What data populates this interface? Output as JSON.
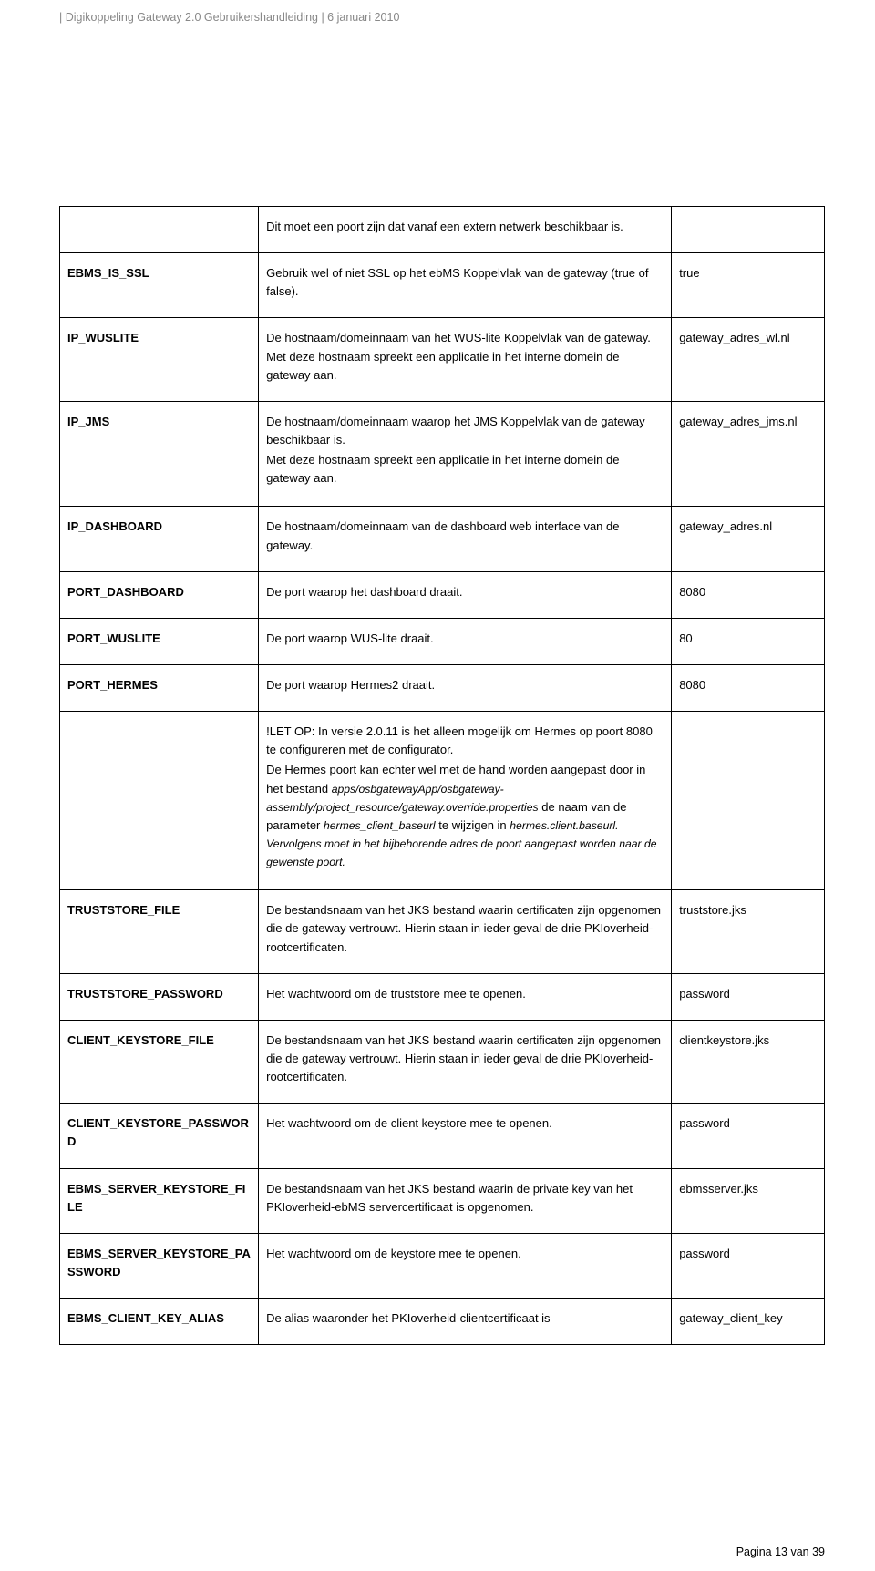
{
  "header": "| Digikoppeling Gateway 2.0 Gebruikershandleiding | 6 januari 2010",
  "footer": "Pagina 13 van 39",
  "rows": {
    "r0": {
      "key": "",
      "desc": "Dit moet een poort zijn dat vanaf een extern netwerk beschikbaar is.",
      "val": ""
    },
    "r1": {
      "key": "EBMS_IS_SSL",
      "desc": "Gebruik wel of niet SSL op het ebMS Koppelvlak van de gateway (true of false).",
      "val": "true"
    },
    "r2": {
      "key": "IP_WUSLITE",
      "desc": "De hostnaam/domeinnaam van het WUS-lite Koppelvlak van de gateway. Met deze hostnaam spreekt een applicatie in het interne domein de gateway aan.",
      "val": "gateway_adres_wl.nl"
    },
    "r3": {
      "key": "IP_JMS",
      "desc1": "De hostnaam/domeinnaam waarop het JMS Koppelvlak van de gateway beschikbaar is.",
      "desc2": "Met deze hostnaam spreekt een applicatie in het interne domein de gateway aan.",
      "val": "gateway_adres_jms.nl"
    },
    "r4": {
      "key": "IP_DASHBOARD",
      "desc": "De hostnaam/domeinnaam van de dashboard web interface van de gateway.",
      "val": "gateway_adres.nl"
    },
    "r5": {
      "key": "PORT_DASHBOARD",
      "desc": "De port waarop het dashboard draait.",
      "val": "8080"
    },
    "r6": {
      "key": "PORT_WUSLITE",
      "desc": "De port waarop WUS-lite draait.",
      "val": "80"
    },
    "r7": {
      "key": "PORT_HERMES",
      "desc": "De port waarop Hermes2 draait.",
      "val": "8080"
    },
    "r8": {
      "key": "",
      "p1": "!LET OP: In versie 2.0.11 is het alleen mogelijk om Hermes op poort 8080 te configureren met de configurator.",
      "p2a": "De Hermes poort kan echter wel met de hand worden aangepast door in het bestand ",
      "p2b_i": "apps/osbgatewayApp/osbgateway-assembly/project_resource/gateway.override.properties",
      "p2c": " de naam van de parameter ",
      "p2d_i": "hermes_client_baseurl",
      "p2e": " te wijzigen in ",
      "p2f_i": "hermes.client.baseurl.",
      "p2g": " Vervolgens moet in het bijbehorende adres de poort aangepast worden naar de gewenste poort.",
      "val": ""
    },
    "r9": {
      "key": "TRUSTSTORE_FILE",
      "desc": "De bestandsnaam van het JKS bestand waarin certificaten zijn opgenomen die de gateway vertrouwt. Hierin staan in ieder geval de drie PKIoverheid-rootcertificaten.",
      "val": "truststore.jks"
    },
    "r10": {
      "key": "TRUSTSTORE_PASSWORD",
      "desc": "Het wachtwoord om de truststore mee te openen.",
      "val": "password"
    },
    "r11": {
      "key": "CLIENT_KEYSTORE_FILE",
      "desc": "De bestandsnaam van het JKS bestand waarin certificaten zijn opgenomen die de gateway vertrouwt. Hierin staan in ieder geval de drie PKIoverheid-rootcertificaten.",
      "val": "clientkeystore.jks"
    },
    "r12": {
      "key": "CLIENT_KEYSTORE_PASSWORD",
      "desc": "Het wachtwoord om de client keystore mee te openen.",
      "val": "password"
    },
    "r13": {
      "key": "EBMS_SERVER_KEYSTORE_FILE",
      "desc": "De bestandsnaam van het JKS bestand waarin de private key van het PKIoverheid-ebMS servercertificaat is opgenomen.",
      "val": "ebmsserver.jks"
    },
    "r14": {
      "key": "EBMS_SERVER_KEYSTORE_PASSWORD",
      "desc": "Het wachtwoord om de keystore mee te openen.",
      "val": "password"
    },
    "r15": {
      "key": "EBMS_CLIENT_KEY_ALIAS",
      "desc": "De alias waaronder het PKIoverheid-clientcertificaat is",
      "val": "gateway_client_key"
    }
  }
}
